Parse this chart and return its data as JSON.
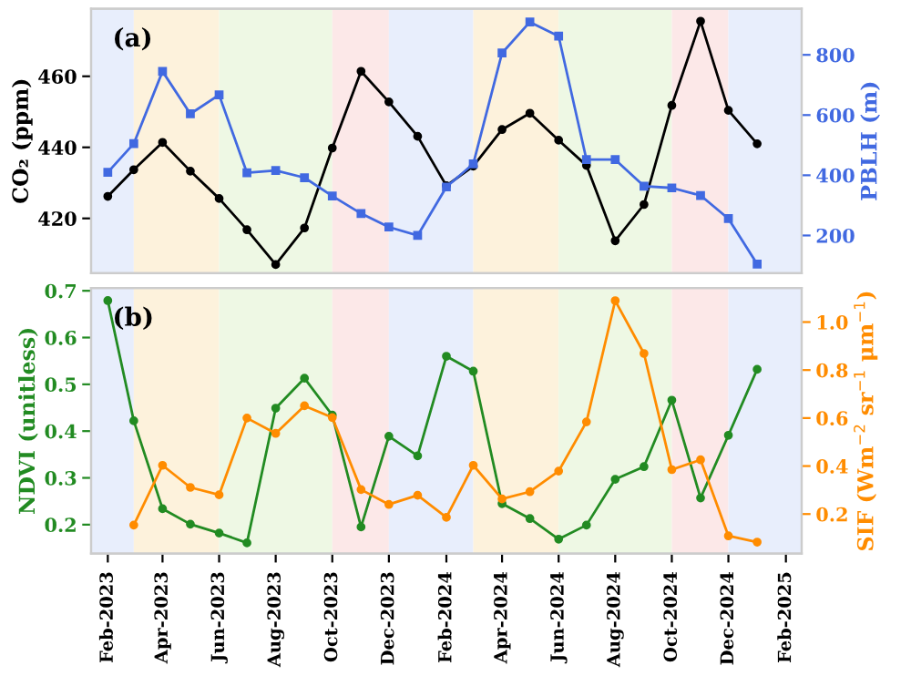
{
  "chart_data": [
    {
      "type": "line",
      "annotations": [
        "(a)"
      ],
      "ylabel": "CO₂ (ppm)",
      "y2label": "PBLH (m)",
      "x": [
        "2023-02",
        "2023-03",
        "2023-04",
        "2023-05",
        "2023-06",
        "2023-07",
        "2023-08",
        "2023-09",
        "2023-10",
        "2023-11",
        "2023-12",
        "2024-01",
        "2024-02",
        "2024-03",
        "2024-04",
        "2024-05",
        "2024-06",
        "2024-07",
        "2024-08",
        "2024-09",
        "2024-10",
        "2024-11",
        "2024-12",
        "2025-01"
      ],
      "series": [
        {
          "color": "#000000",
          "marker": "circle",
          "values": [
            426.2,
            433.7,
            441.4,
            433.3,
            425.6,
            416.8,
            407.0,
            417.3,
            439.8,
            461.4,
            452.8,
            443.1,
            429.2,
            434.7,
            445.0,
            449.6,
            442.0,
            434.9,
            413.7,
            423.9,
            451.8,
            475.5,
            450.4,
            441.0
          ]
        },
        {
          "color": "#4169e1",
          "marker": "square",
          "axis": "y2",
          "values": [
            410,
            505,
            745,
            604,
            667,
            408,
            416,
            392,
            331,
            273,
            228,
            200,
            361,
            438,
            806,
            909,
            862,
            452,
            452,
            364,
            358,
            333,
            256,
            105
          ]
        }
      ],
      "xlim": [
        "2023-01-14",
        "2025-02-18"
      ],
      "ylim": [
        404.6,
        479
      ],
      "yticks": [
        420,
        440,
        460
      ],
      "y2lim": [
        75,
        953
      ],
      "y2ticks": [
        200,
        400,
        600,
        800
      ],
      "tick_labels": "y",
      "grid": false,
      "legend": false,
      "line_style": "solid",
      "bands": [
        {
          "axis": "x",
          "from": "2023-01-14",
          "to": "2023-03-01",
          "color": "#e8eefc"
        },
        {
          "axis": "x",
          "from": "2023-03-01",
          "to": "2023-06-01",
          "color": "#fdf2dc"
        },
        {
          "axis": "x",
          "from": "2023-06-01",
          "to": "2023-10-01",
          "color": "#eef8e4"
        },
        {
          "axis": "x",
          "from": "2023-10-01",
          "to": "2023-12-01",
          "color": "#fce8e8"
        },
        {
          "axis": "x",
          "from": "2023-12-01",
          "to": "2024-03-01",
          "color": "#e8eefc"
        },
        {
          "axis": "x",
          "from": "2024-03-01",
          "to": "2024-06-01",
          "color": "#fdf2dc"
        },
        {
          "axis": "x",
          "from": "2024-06-01",
          "to": "2024-10-01",
          "color": "#eef8e4"
        },
        {
          "axis": "x",
          "from": "2024-10-01",
          "to": "2024-12-01",
          "color": "#fce8e8"
        },
        {
          "axis": "x",
          "from": "2024-12-01",
          "to": "2025-02-18",
          "color": "#e8eefc"
        }
      ]
    },
    {
      "type": "line",
      "annotations": [
        "(b)"
      ],
      "ylabel": "NDVI (unitless)",
      "y2label": "SIF (Wm$^{−2}$ sr$^{−1}$ μm$^{−1}$)",
      "x": [
        "2023-02",
        "2023-03",
        "2023-04",
        "2023-05",
        "2023-06",
        "2023-07",
        "2023-08",
        "2023-09",
        "2023-10",
        "2023-11",
        "2023-12",
        "2024-01",
        "2024-02",
        "2024-03",
        "2024-04",
        "2024-05",
        "2024-06",
        "2024-07",
        "2024-08",
        "2024-09",
        "2024-10",
        "2024-11",
        "2024-12",
        "2025-01"
      ],
      "series": [
        {
          "color": "#228b22",
          "marker": "circle",
          "values": [
            0.679,
            0.422,
            0.234,
            0.201,
            0.182,
            0.161,
            0.449,
            0.513,
            0.434,
            0.195,
            0.389,
            0.347,
            0.56,
            0.528,
            0.245,
            0.213,
            0.169,
            0.199,
            0.297,
            0.324,
            0.466,
            0.257,
            0.391,
            0.532
          ]
        },
        {
          "color": "#ff8c00",
          "marker": "circle",
          "axis": "y2",
          "values": [
            null,
            0.154,
            0.403,
            0.311,
            0.28,
            0.6,
            0.536,
            0.651,
            0.602,
            0.302,
            0.24,
            0.278,
            0.186,
            0.403,
            0.263,
            0.293,
            0.379,
            0.584,
            1.089,
            0.869,
            0.385,
            0.426,
            0.109,
            0.083
          ]
        }
      ],
      "xlim": [
        "2023-01-14",
        "2025-02-18"
      ],
      "xticks": [
        {
          "value": "2023-02",
          "label": "Feb-2023"
        },
        {
          "value": "2023-04",
          "label": "Apr-2023"
        },
        {
          "value": "2023-06",
          "label": "Jun-2023"
        },
        {
          "value": "2023-08",
          "label": "Aug-2023"
        },
        {
          "value": "2023-10",
          "label": "Oct-2023"
        },
        {
          "value": "2023-12",
          "label": "Dec-2023"
        },
        {
          "value": "2024-02",
          "label": "Feb-2024"
        },
        {
          "value": "2024-04",
          "label": "Apr-2024"
        },
        {
          "value": "2024-06",
          "label": "Jun-2024"
        },
        {
          "value": "2024-08",
          "label": "Aug-2024"
        },
        {
          "value": "2024-10",
          "label": "Oct-2024"
        },
        {
          "value": "2024-12",
          "label": "Dec-2024"
        },
        {
          "value": "2025-02",
          "label": "Feb-2025"
        }
      ],
      "ylim": [
        0.138,
        0.706
      ],
      "yticks": [
        0.2,
        0.3,
        0.4,
        0.5,
        0.6,
        0.7
      ],
      "y2lim": [
        0.035,
        1.142
      ],
      "y2ticks": [
        0.2,
        0.4,
        0.6,
        0.8,
        {
          "value": 1.0,
          "label": "1.0"
        }
      ],
      "grid": false,
      "legend": false,
      "line_style": "solid",
      "bands": [
        {
          "axis": "x",
          "from": "2023-01-14",
          "to": "2023-03-01",
          "color": "#e8eefc"
        },
        {
          "axis": "x",
          "from": "2023-03-01",
          "to": "2023-06-01",
          "color": "#fdf2dc"
        },
        {
          "axis": "x",
          "from": "2023-06-01",
          "to": "2023-10-01",
          "color": "#eef8e4"
        },
        {
          "axis": "x",
          "from": "2023-10-01",
          "to": "2023-12-01",
          "color": "#fce8e8"
        },
        {
          "axis": "x",
          "from": "2023-12-01",
          "to": "2024-03-01",
          "color": "#e8eefc"
        },
        {
          "axis": "x",
          "from": "2024-03-01",
          "to": "2024-06-01",
          "color": "#fdf2dc"
        },
        {
          "axis": "x",
          "from": "2024-06-01",
          "to": "2024-10-01",
          "color": "#eef8e4"
        },
        {
          "axis": "x",
          "from": "2024-10-01",
          "to": "2024-12-01",
          "color": "#fce8e8"
        },
        {
          "axis": "x",
          "from": "2024-12-01",
          "to": "2025-02-18",
          "color": "#e8eefc"
        }
      ]
    }
  ]
}
